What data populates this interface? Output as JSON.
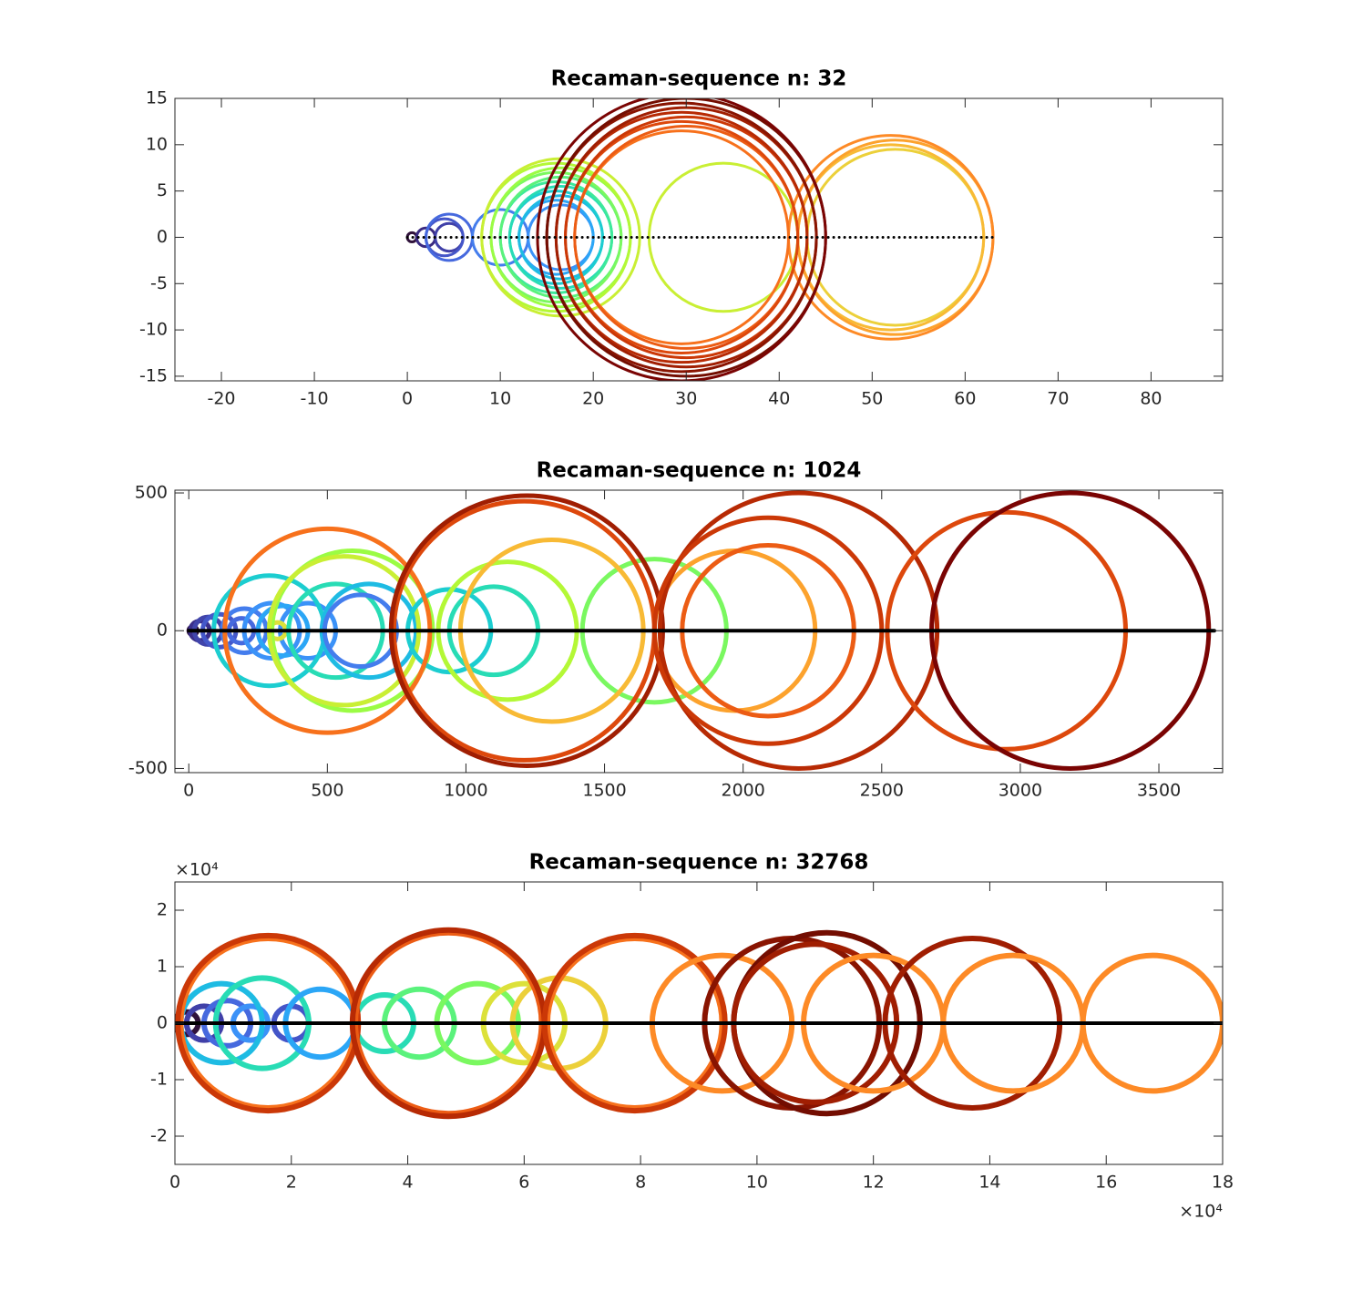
{
  "chart_data": [
    {
      "type": "circles",
      "title": "Recaman-sequence n: 32",
      "xlim": [
        -25,
        87.7
      ],
      "ylim": [
        -15.5,
        15
      ],
      "xticks": [
        -20,
        -10,
        0,
        10,
        20,
        30,
        40,
        50,
        60,
        70,
        80
      ],
      "yticks": [
        -15,
        -10,
        -5,
        0,
        5,
        10,
        15
      ],
      "segment": {
        "x": [
          0,
          63
        ],
        "y": [
          0,
          0
        ],
        "style": "dotted"
      },
      "circles": {
        "centers": [
          0.5,
          2,
          4.5,
          4,
          4.5,
          10,
          16.5,
          16,
          16.5,
          16,
          16.5,
          16,
          16.5,
          16,
          16.5,
          16,
          16.5,
          34,
          52.5,
          52,
          52.5,
          52,
          29.5,
          30,
          29.5,
          30,
          29.5,
          30,
          29.5,
          30,
          29.5
        ],
        "radii": [
          0.5,
          1,
          1.5,
          2,
          2.5,
          3,
          3.5,
          4,
          4.5,
          5,
          5.5,
          6,
          6.5,
          7,
          7.5,
          8,
          8.5,
          8,
          9.5,
          10,
          10.5,
          11,
          11.5,
          12,
          12.5,
          13,
          13.5,
          14,
          14.5,
          15,
          15.5
        ],
        "colors": [
          "#30123b",
          "#3a2a80",
          "#4040a8",
          "#4455c8",
          "#4669de",
          "#447ded",
          "#3b92f8",
          "#2ba6f6",
          "#1ebbe3",
          "#1ccdd0",
          "#28dcb5",
          "#3de99a",
          "#5af27c",
          "#7af860",
          "#9bfc44",
          "#b4f836",
          "#c9ef34",
          "#c9ef34",
          "#ecd03a",
          "#f8ba35",
          "#fca22d",
          "#fd8a26",
          "#f7711c",
          "#ec5c14",
          "#dd480c",
          "#cb3807",
          "#b72a04",
          "#a01e02",
          "#891401",
          "#730d01",
          "#7a0403"
        ]
      }
    },
    {
      "type": "circles",
      "title": "Recaman-sequence n: 1024",
      "xlim": [
        -50,
        3730
      ],
      "ylim": [
        -515,
        510
      ],
      "xticks": [
        0,
        500,
        1000,
        1500,
        2000,
        2500,
        3000,
        3500
      ],
      "yticks": [
        -500,
        0,
        500
      ],
      "segment": {
        "x": [
          0,
          3700
        ],
        "y": [
          0,
          0
        ],
        "style": "solid"
      },
      "circles": {
        "centers": [
          15,
          40,
          70,
          110,
          190,
          200,
          300,
          340,
          430,
          290,
          320,
          530,
          650,
          620,
          590,
          560,
          940,
          1100,
          1150,
          1680,
          1310,
          1970,
          500,
          1210,
          1220,
          2090,
          2200,
          2090,
          2950,
          3180
        ],
        "radii": [
          15,
          35,
          50,
          60,
          45,
          80,
          100,
          90,
          100,
          200,
          30,
          170,
          170,
          130,
          290,
          270,
          150,
          160,
          250,
          260,
          330,
          290,
          370,
          470,
          490,
          310,
          500,
          410,
          430,
          500
        ],
        "colors": [
          "#30123b",
          "#3b2f8a",
          "#4145ab",
          "#4458c9",
          "#4669de",
          "#447ded",
          "#3b92f8",
          "#2ba6f6",
          "#3b92f8",
          "#1ccdd0",
          "#dce13a",
          "#28dcb5",
          "#1ebbe3",
          "#447ded",
          "#9bfc44",
          "#c9ef34",
          "#1ccdd0",
          "#28dcb5",
          "#b4f836",
          "#7af860",
          "#f8ba35",
          "#fca22d",
          "#f7711c",
          "#dd480c",
          "#a01e02",
          "#ec5c14",
          "#b72a04",
          "#cb3807",
          "#dd480c",
          "#7a0403"
        ]
      }
    },
    {
      "type": "circles",
      "title": "Recaman-sequence n: 32768",
      "x_exponent": "×10⁴",
      "y_exponent": "×10⁴",
      "xlim": [
        0,
        180000
      ],
      "ylim": [
        -25000,
        25000
      ],
      "xticks": [
        {
          "value": 0,
          "label": "0"
        },
        {
          "value": 20000,
          "label": "2"
        },
        {
          "value": 40000,
          "label": "4"
        },
        {
          "value": 60000,
          "label": "6"
        },
        {
          "value": 80000,
          "label": "8"
        },
        {
          "value": 100000,
          "label": "10"
        },
        {
          "value": 120000,
          "label": "12"
        },
        {
          "value": 140000,
          "label": "14"
        },
        {
          "value": 160000,
          "label": "16"
        },
        {
          "value": 180000,
          "label": "18"
        }
      ],
      "yticks": [
        {
          "value": -20000,
          "label": "-2"
        },
        {
          "value": -10000,
          "label": "-1"
        },
        {
          "value": 0,
          "label": "0"
        },
        {
          "value": 10000,
          "label": "1"
        },
        {
          "value": 20000,
          "label": "2"
        }
      ],
      "segment": {
        "x": [
          0,
          180000
        ],
        "y": [
          0,
          0
        ],
        "style": "solid"
      },
      "circles": {
        "centers": [
          2000,
          5000,
          9000,
          13000,
          20000,
          8000,
          15000,
          25000,
          36000,
          42000,
          52000,
          60000,
          66000,
          16000,
          16000,
          47000,
          47000,
          79000,
          79000,
          94000,
          106000,
          112000,
          110000,
          120000,
          137000,
          144000,
          168000
        ],
        "radii": [
          2000,
          3000,
          4000,
          3000,
          3000,
          7000,
          8000,
          6000,
          5000,
          6000,
          7000,
          7000,
          8000,
          15000,
          15500,
          16000,
          16500,
          15000,
          15500,
          12000,
          15000,
          16000,
          14000,
          12000,
          15000,
          12000,
          12000
        ],
        "colors": [
          "#30123b",
          "#4040a8",
          "#4669de",
          "#3b92f8",
          "#4455c8",
          "#1ebbe3",
          "#28dcb5",
          "#2ba6f6",
          "#28dcb5",
          "#5af27c",
          "#7af860",
          "#dce13a",
          "#ecd03a",
          "#f7711c",
          "#cb3807",
          "#ec5c14",
          "#b72a04",
          "#f7711c",
          "#cb3807",
          "#fd8a26",
          "#891401",
          "#730d01",
          "#a01e02",
          "#fd8a26",
          "#a01e02",
          "#fd8a26",
          "#fd8a26"
        ]
      }
    }
  ]
}
